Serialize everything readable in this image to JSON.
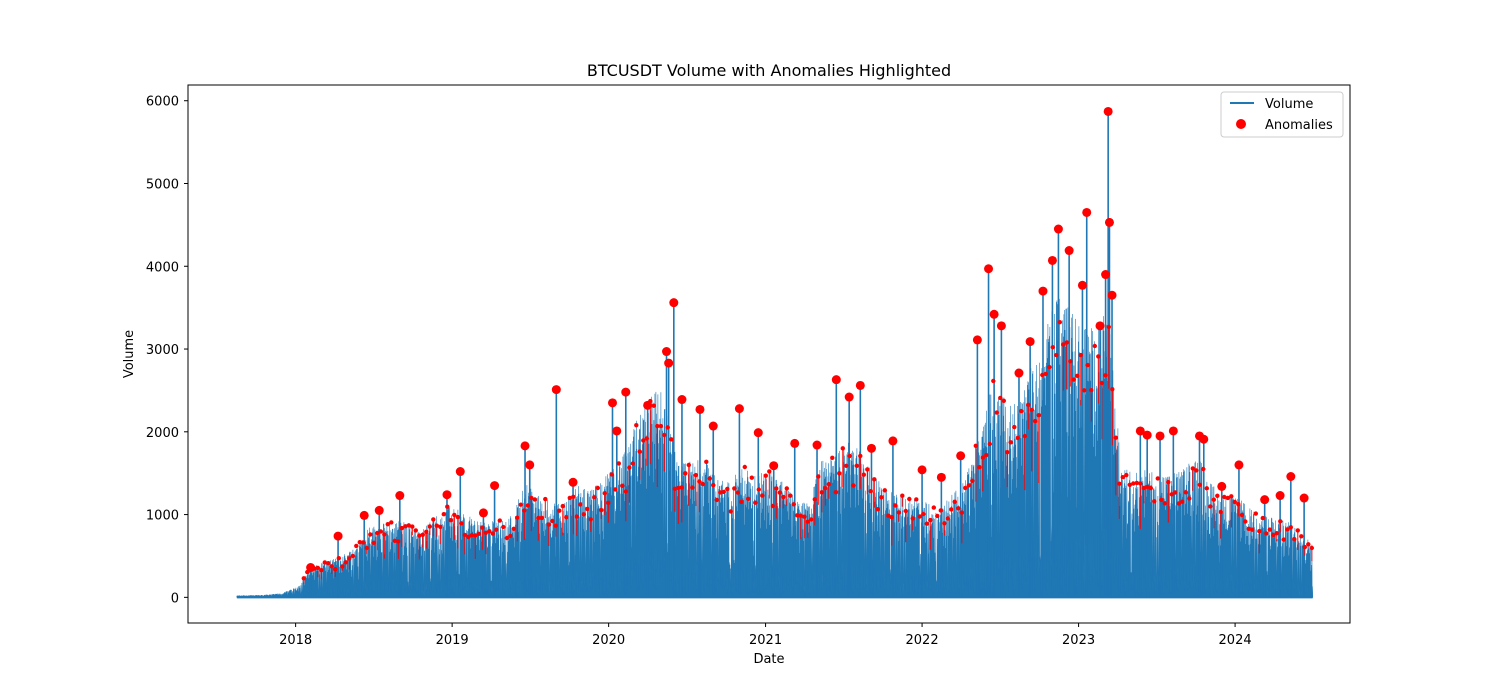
{
  "chart_data": {
    "type": "line",
    "title": "BTCUSDT Volume with Anomalies Highlighted",
    "xlabel": "Date",
    "ylabel": "Volume",
    "x_ticks": [
      "2018",
      "2019",
      "2020",
      "2021",
      "2022",
      "2023",
      "2024"
    ],
    "y_ticks": [
      0,
      1000,
      2000,
      3000,
      4000,
      5000,
      6000
    ],
    "xlim": [
      "2017-04-25",
      "2024-09-25"
    ],
    "ylim": [
      -310,
      6190
    ],
    "grid": false,
    "legend_position": "top-right",
    "colors": {
      "volume": "#1f77b4",
      "anomalies": "#ff0000"
    },
    "series": [
      {
        "name": "Volume",
        "kind": "line",
        "note": "upper envelope of the volume trace",
        "x": [
          "2017-08-17",
          "2017-10-15",
          "2017-12-01",
          "2018-01-10",
          "2018-02-01",
          "2018-03-01",
          "2018-04-10",
          "2018-05-15",
          "2018-06-20",
          "2018-08-01",
          "2018-09-10",
          "2018-10-20",
          "2018-11-20",
          "2018-12-20",
          "2019-01-20",
          "2019-02-20",
          "2019-03-20",
          "2019-04-20",
          "2019-05-20",
          "2019-06-20",
          "2019-07-20",
          "2019-08-20",
          "2019-09-20",
          "2019-10-20",
          "2019-11-20",
          "2019-12-20",
          "2020-01-20",
          "2020-02-20",
          "2020-03-12",
          "2020-04-10",
          "2020-05-10",
          "2020-06-10",
          "2020-07-10",
          "2020-08-10",
          "2020-09-10",
          "2020-10-10",
          "2020-11-10",
          "2020-12-10",
          "2021-01-10",
          "2021-02-10",
          "2021-03-10",
          "2021-04-10",
          "2021-05-10",
          "2021-06-10",
          "2021-07-10",
          "2021-08-10",
          "2021-09-10",
          "2021-10-10",
          "2021-11-10",
          "2021-12-10",
          "2022-01-10",
          "2022-02-10",
          "2022-03-10",
          "2022-04-10",
          "2022-05-10",
          "2022-06-18",
          "2022-07-20",
          "2022-08-20",
          "2022-09-20",
          "2022-10-20",
          "2022-11-10",
          "2022-12-10",
          "2023-01-10",
          "2023-02-10",
          "2023-03-10",
          "2023-04-10",
          "2023-05-10",
          "2023-06-10",
          "2023-07-10",
          "2023-08-10",
          "2023-09-10",
          "2023-10-10",
          "2023-11-10",
          "2023-12-10",
          "2024-01-10",
          "2024-02-10",
          "2024-03-10",
          "2024-04-10",
          "2024-05-10",
          "2024-06-10",
          "2024-06-30"
        ],
        "values": [
          20,
          30,
          50,
          150,
          350,
          420,
          480,
          600,
          850,
          900,
          950,
          800,
          980,
          1100,
          1050,
          950,
          900,
          950,
          1000,
          1400,
          1250,
          1150,
          1200,
          1350,
          1300,
          1450,
          1600,
          1850,
          2300,
          2500,
          2500,
          1600,
          1650,
          1700,
          1450,
          1400,
          1600,
          1500,
          1550,
          1400,
          1200,
          1150,
          1650,
          1700,
          1900,
          1800,
          1500,
          1300,
          1250,
          1200,
          1150,
          1050,
          1250,
          1450,
          1900,
          2700,
          2300,
          2400,
          2900,
          3300,
          3800,
          3500,
          3300,
          3250,
          3500,
          1600,
          1500,
          1550,
          1450,
          1500,
          1600,
          1700,
          1350,
          1250,
          1200,
          1050,
          1000,
          950,
          900,
          750,
          650
        ]
      },
      {
        "name": "Anomalies",
        "kind": "scatter",
        "note": "main highlighted anomaly points",
        "x": [
          "2018-02-05",
          "2018-04-10",
          "2018-06-10",
          "2018-07-15",
          "2018-09-01",
          "2018-12-20",
          "2019-01-20",
          "2019-03-15",
          "2019-04-10",
          "2019-06-20",
          "2019-07-01",
          "2019-09-01",
          "2019-10-10",
          "2020-01-10",
          "2020-01-20",
          "2020-02-10",
          "2020-04-01",
          "2020-05-15",
          "2020-05-20",
          "2020-06-01",
          "2020-06-20",
          "2020-08-01",
          "2020-09-01",
          "2020-11-01",
          "2020-12-15",
          "2021-01-20",
          "2021-03-10",
          "2021-05-01",
          "2021-06-15",
          "2021-07-15",
          "2021-08-10",
          "2021-09-05",
          "2021-10-25",
          "2022-01-01",
          "2022-02-15",
          "2022-04-01",
          "2022-05-10",
          "2022-06-05",
          "2022-06-18",
          "2022-07-05",
          "2022-08-15",
          "2022-09-10",
          "2022-10-10",
          "2022-11-01",
          "2022-11-15",
          "2022-12-10",
          "2023-01-10",
          "2023-01-20",
          "2023-02-20",
          "2023-03-05",
          "2023-03-11",
          "2023-03-14",
          "2023-03-20",
          "2023-05-25",
          "2023-06-10",
          "2023-07-10",
          "2023-08-10",
          "2023-10-10",
          "2023-10-20",
          "2023-12-01",
          "2024-01-10",
          "2024-03-10",
          "2024-04-15",
          "2024-05-10",
          "2024-06-10"
        ],
        "values": [
          360,
          740,
          990,
          1050,
          1230,
          1240,
          1520,
          1020,
          1350,
          1830,
          1600,
          2510,
          1390,
          2350,
          2010,
          2480,
          2320,
          2970,
          2830,
          3560,
          2390,
          2270,
          2070,
          2280,
          1990,
          1590,
          1860,
          1840,
          2630,
          2420,
          2560,
          1800,
          1890,
          1540,
          1450,
          1710,
          3110,
          3970,
          3420,
          3280,
          2710,
          3090,
          3700,
          4070,
          4450,
          4190,
          3770,
          4650,
          3280,
          3900,
          5870,
          4530,
          3650,
          2010,
          1960,
          1950,
          2010,
          1950,
          1910,
          1340,
          1600,
          1180,
          1230,
          1460,
          1200
        ]
      }
    ]
  }
}
